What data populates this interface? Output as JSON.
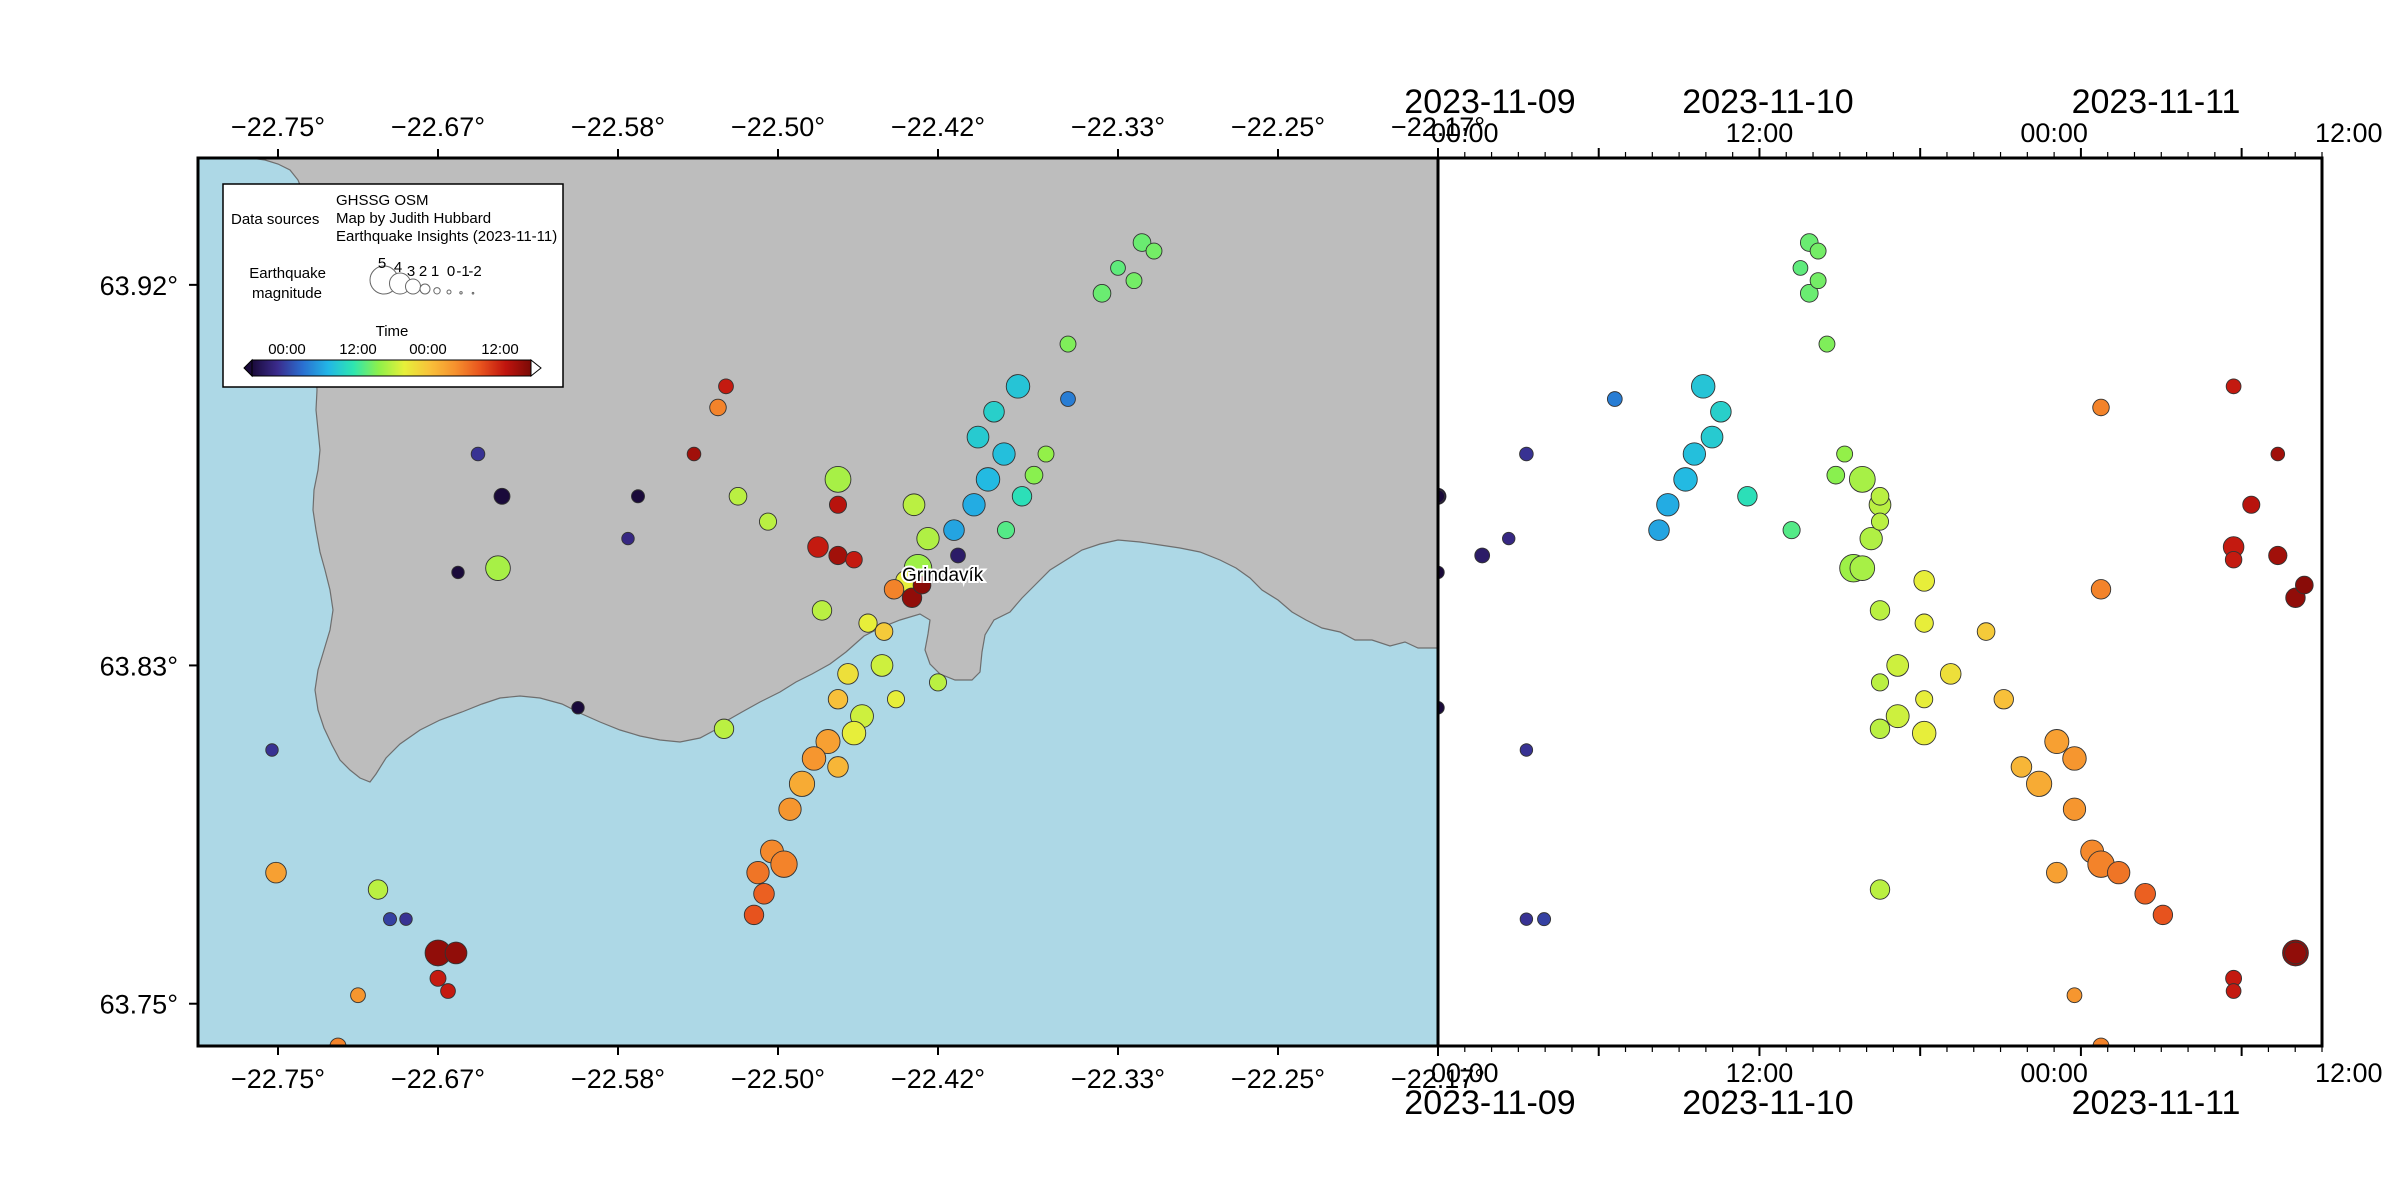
{
  "map": {
    "lon_ticks": [
      "−22.75°",
      "−22.67°",
      "−22.58°",
      "−22.50°",
      "−22.42°",
      "−22.33°",
      "−22.25°",
      "−22.17°"
    ],
    "lat_ticks": [
      "63.92°",
      "63.83°",
      "63.75°"
    ],
    "place_label": "Grindavík",
    "colors": {
      "land": "#bdbdbd",
      "sea": "#add8e6",
      "frame": "#000000"
    }
  },
  "timeline": {
    "ticks_top": [
      {
        "date": "2023-11-09",
        "time": "00:00"
      },
      {
        "date": "2023-11-10",
        "time": "12:00"
      },
      {
        "date": "",
        "time": "00:00"
      },
      {
        "date": "2023-11-11",
        "time": "12:00"
      }
    ],
    "ticks_bottom": [
      {
        "time": "00:00",
        "date": "2023-11-09"
      },
      {
        "time": "12:00",
        "date": "2023-11-10"
      },
      {
        "time": "00:00",
        "date": ""
      },
      {
        "time": "12:00",
        "date": "2023-11-11"
      }
    ]
  },
  "legend": {
    "data_sources_label": "Data sources",
    "sources": [
      "GHSSG OSM",
      "Map by Judith Hubbard",
      "Earthquake Insights (2023-11-11)"
    ],
    "magnitude_label_line1": "Earthquake",
    "magnitude_label_line2": "magnitude",
    "magnitudes": [
      "5",
      "4",
      "3",
      "2",
      "1",
      "0",
      "-1",
      "-2"
    ],
    "time_label": "Time",
    "time_ticks": [
      "00:00",
      "12:00",
      "00:00",
      "12:00"
    ],
    "colormap": [
      "#1a0a3a",
      "#3a2b8c",
      "#2a6fd0",
      "#22b6e6",
      "#2ee6b0",
      "#8ef04a",
      "#e6f03a",
      "#f8c23a",
      "#f6922e",
      "#e8541e",
      "#c0140e",
      "#7a0a06"
    ]
  },
  "chart_data": {
    "type": "scatter",
    "x_axis_unit": "longitude (deg)",
    "y_axis_unit": "latitude (deg)",
    "xlim": [
      -22.79,
      -22.17
    ],
    "ylim": [
      63.74,
      63.95
    ],
    "time_range": [
      "2023-11-09T00:00",
      "2023-11-11T18:00"
    ],
    "size_encodes": "magnitude",
    "color_encodes": "time",
    "points": [
      {
        "lon": -22.318,
        "lat": 63.93,
        "mag": 1.5,
        "t": 0.42
      },
      {
        "lon": -22.312,
        "lat": 63.928,
        "mag": 1.2,
        "t": 0.43
      },
      {
        "lon": -22.33,
        "lat": 63.924,
        "mag": 1.0,
        "t": 0.41
      },
      {
        "lon": -22.338,
        "lat": 63.918,
        "mag": 1.5,
        "t": 0.42
      },
      {
        "lon": -22.322,
        "lat": 63.921,
        "mag": 1.2,
        "t": 0.43
      },
      {
        "lon": -22.355,
        "lat": 63.906,
        "mag": 1.2,
        "t": 0.44
      },
      {
        "lon": -22.38,
        "lat": 63.896,
        "mag": 2.5,
        "t": 0.3
      },
      {
        "lon": -22.392,
        "lat": 63.89,
        "mag": 2.0,
        "t": 0.32
      },
      {
        "lon": -22.4,
        "lat": 63.884,
        "mag": 2.2,
        "t": 0.31
      },
      {
        "lon": -22.387,
        "lat": 63.88,
        "mag": 2.3,
        "t": 0.29
      },
      {
        "lon": -22.395,
        "lat": 63.874,
        "mag": 2.5,
        "t": 0.28
      },
      {
        "lon": -22.378,
        "lat": 63.87,
        "mag": 1.8,
        "t": 0.35
      },
      {
        "lon": -22.402,
        "lat": 63.868,
        "mag": 2.3,
        "t": 0.26
      },
      {
        "lon": -22.412,
        "lat": 63.862,
        "mag": 2.0,
        "t": 0.25
      },
      {
        "lon": -22.386,
        "lat": 63.862,
        "mag": 1.4,
        "t": 0.4
      },
      {
        "lon": -22.41,
        "lat": 63.856,
        "mag": 1.0,
        "t": 0.05
      },
      {
        "lon": -22.372,
        "lat": 63.875,
        "mag": 1.5,
        "t": 0.45
      },
      {
        "lon": -22.366,
        "lat": 63.88,
        "mag": 1.2,
        "t": 0.46
      },
      {
        "lon": -22.355,
        "lat": 63.893,
        "mag": 1.0,
        "t": 0.2
      },
      {
        "lon": -22.47,
        "lat": 63.874,
        "mag": 2.9,
        "t": 0.48
      },
      {
        "lon": -22.47,
        "lat": 63.868,
        "mag": 1.4,
        "t": 0.92
      },
      {
        "lon": -22.432,
        "lat": 63.868,
        "mag": 2.2,
        "t": 0.5
      },
      {
        "lon": -22.425,
        "lat": 63.86,
        "mag": 2.3,
        "t": 0.49
      },
      {
        "lon": -22.43,
        "lat": 63.853,
        "mag": 3.2,
        "t": 0.47
      },
      {
        "lon": -22.436,
        "lat": 63.85,
        "mag": 2.0,
        "t": 0.55
      },
      {
        "lon": -22.442,
        "lat": 63.848,
        "mag": 1.8,
        "t": 0.75
      },
      {
        "lon": -22.433,
        "lat": 63.846,
        "mag": 1.8,
        "t": 0.97
      },
      {
        "lon": -22.428,
        "lat": 63.849,
        "mag": 1.5,
        "t": 0.98
      },
      {
        "lon": -22.48,
        "lat": 63.858,
        "mag": 2.0,
        "t": 0.9
      },
      {
        "lon": -22.47,
        "lat": 63.856,
        "mag": 1.6,
        "t": 0.95
      },
      {
        "lon": -22.462,
        "lat": 63.855,
        "mag": 1.3,
        "t": 0.9
      },
      {
        "lon": -22.478,
        "lat": 63.843,
        "mag": 1.8,
        "t": 0.5
      },
      {
        "lon": -22.455,
        "lat": 63.84,
        "mag": 1.6,
        "t": 0.55
      },
      {
        "lon": -22.447,
        "lat": 63.838,
        "mag": 1.5,
        "t": 0.62
      },
      {
        "lon": -22.448,
        "lat": 63.83,
        "mag": 2.2,
        "t": 0.52
      },
      {
        "lon": -22.465,
        "lat": 63.828,
        "mag": 2.0,
        "t": 0.58
      },
      {
        "lon": -22.47,
        "lat": 63.822,
        "mag": 1.8,
        "t": 0.64
      },
      {
        "lon": -22.458,
        "lat": 63.818,
        "mag": 2.4,
        "t": 0.52
      },
      {
        "lon": -22.462,
        "lat": 63.814,
        "mag": 2.5,
        "t": 0.55
      },
      {
        "lon": -22.475,
        "lat": 63.812,
        "mag": 2.6,
        "t": 0.7
      },
      {
        "lon": -22.482,
        "lat": 63.808,
        "mag": 2.5,
        "t": 0.72
      },
      {
        "lon": -22.47,
        "lat": 63.806,
        "mag": 2.0,
        "t": 0.66
      },
      {
        "lon": -22.488,
        "lat": 63.802,
        "mag": 2.8,
        "t": 0.68
      },
      {
        "lon": -22.494,
        "lat": 63.796,
        "mag": 2.3,
        "t": 0.72
      },
      {
        "lon": -22.503,
        "lat": 63.786,
        "mag": 2.4,
        "t": 0.74
      },
      {
        "lon": -22.497,
        "lat": 63.783,
        "mag": 3.0,
        "t": 0.75
      },
      {
        "lon": -22.51,
        "lat": 63.781,
        "mag": 2.3,
        "t": 0.77
      },
      {
        "lon": -22.507,
        "lat": 63.776,
        "mag": 2.0,
        "t": 0.8
      },
      {
        "lon": -22.512,
        "lat": 63.771,
        "mag": 1.8,
        "t": 0.82
      },
      {
        "lon": -22.527,
        "lat": 63.815,
        "mag": 1.8,
        "t": 0.5
      },
      {
        "lon": -22.441,
        "lat": 63.822,
        "mag": 1.4,
        "t": 0.55
      },
      {
        "lon": -22.42,
        "lat": 63.826,
        "mag": 1.4,
        "t": 0.5
      },
      {
        "lon": -22.52,
        "lat": 63.87,
        "mag": 1.5,
        "t": 0.5
      },
      {
        "lon": -22.505,
        "lat": 63.864,
        "mag": 1.4,
        "t": 0.5
      },
      {
        "lon": -22.53,
        "lat": 63.891,
        "mag": 1.3,
        "t": 0.75
      },
      {
        "lon": -22.526,
        "lat": 63.896,
        "mag": 1.0,
        "t": 0.9
      },
      {
        "lon": -22.542,
        "lat": 63.88,
        "mag": 0.8,
        "t": 0.95
      },
      {
        "lon": -22.64,
        "lat": 63.853,
        "mag": 2.7,
        "t": 0.48
      },
      {
        "lon": -22.638,
        "lat": 63.87,
        "mag": 1.2,
        "t": 0.0
      },
      {
        "lon": -22.65,
        "lat": 63.88,
        "mag": 0.8,
        "t": 0.1
      },
      {
        "lon": -22.66,
        "lat": 63.852,
        "mag": 0.6,
        "t": 0.0
      },
      {
        "lon": -22.57,
        "lat": 63.87,
        "mag": 0.7,
        "t": 0.0
      },
      {
        "lon": -22.575,
        "lat": 63.86,
        "mag": 0.6,
        "t": 0.08
      },
      {
        "lon": -22.7,
        "lat": 63.777,
        "mag": 1.8,
        "t": 0.5
      },
      {
        "lon": -22.694,
        "lat": 63.77,
        "mag": 0.7,
        "t": 0.12
      },
      {
        "lon": -22.686,
        "lat": 63.77,
        "mag": 0.6,
        "t": 0.1
      },
      {
        "lon": -22.67,
        "lat": 63.762,
        "mag": 2.9,
        "t": 0.97
      },
      {
        "lon": -22.661,
        "lat": 63.762,
        "mag": 2.2,
        "t": 0.97
      },
      {
        "lon": -22.67,
        "lat": 63.756,
        "mag": 1.2,
        "t": 0.9
      },
      {
        "lon": -22.665,
        "lat": 63.753,
        "mag": 1.0,
        "t": 0.9
      },
      {
        "lon": -22.751,
        "lat": 63.781,
        "mag": 2.0,
        "t": 0.7
      },
      {
        "lon": -22.753,
        "lat": 63.81,
        "mag": 0.6,
        "t": 0.1
      },
      {
        "lon": -22.72,
        "lat": 63.74,
        "mag": 1.2,
        "t": 0.75
      },
      {
        "lon": -22.71,
        "lat": 63.752,
        "mag": 1.0,
        "t": 0.72
      },
      {
        "lon": -22.696,
        "lat": 63.735,
        "mag": 2.3,
        "t": 0.95
      },
      {
        "lon": -22.6,
        "lat": 63.82,
        "mag": 0.6,
        "t": 0.0
      }
    ]
  }
}
